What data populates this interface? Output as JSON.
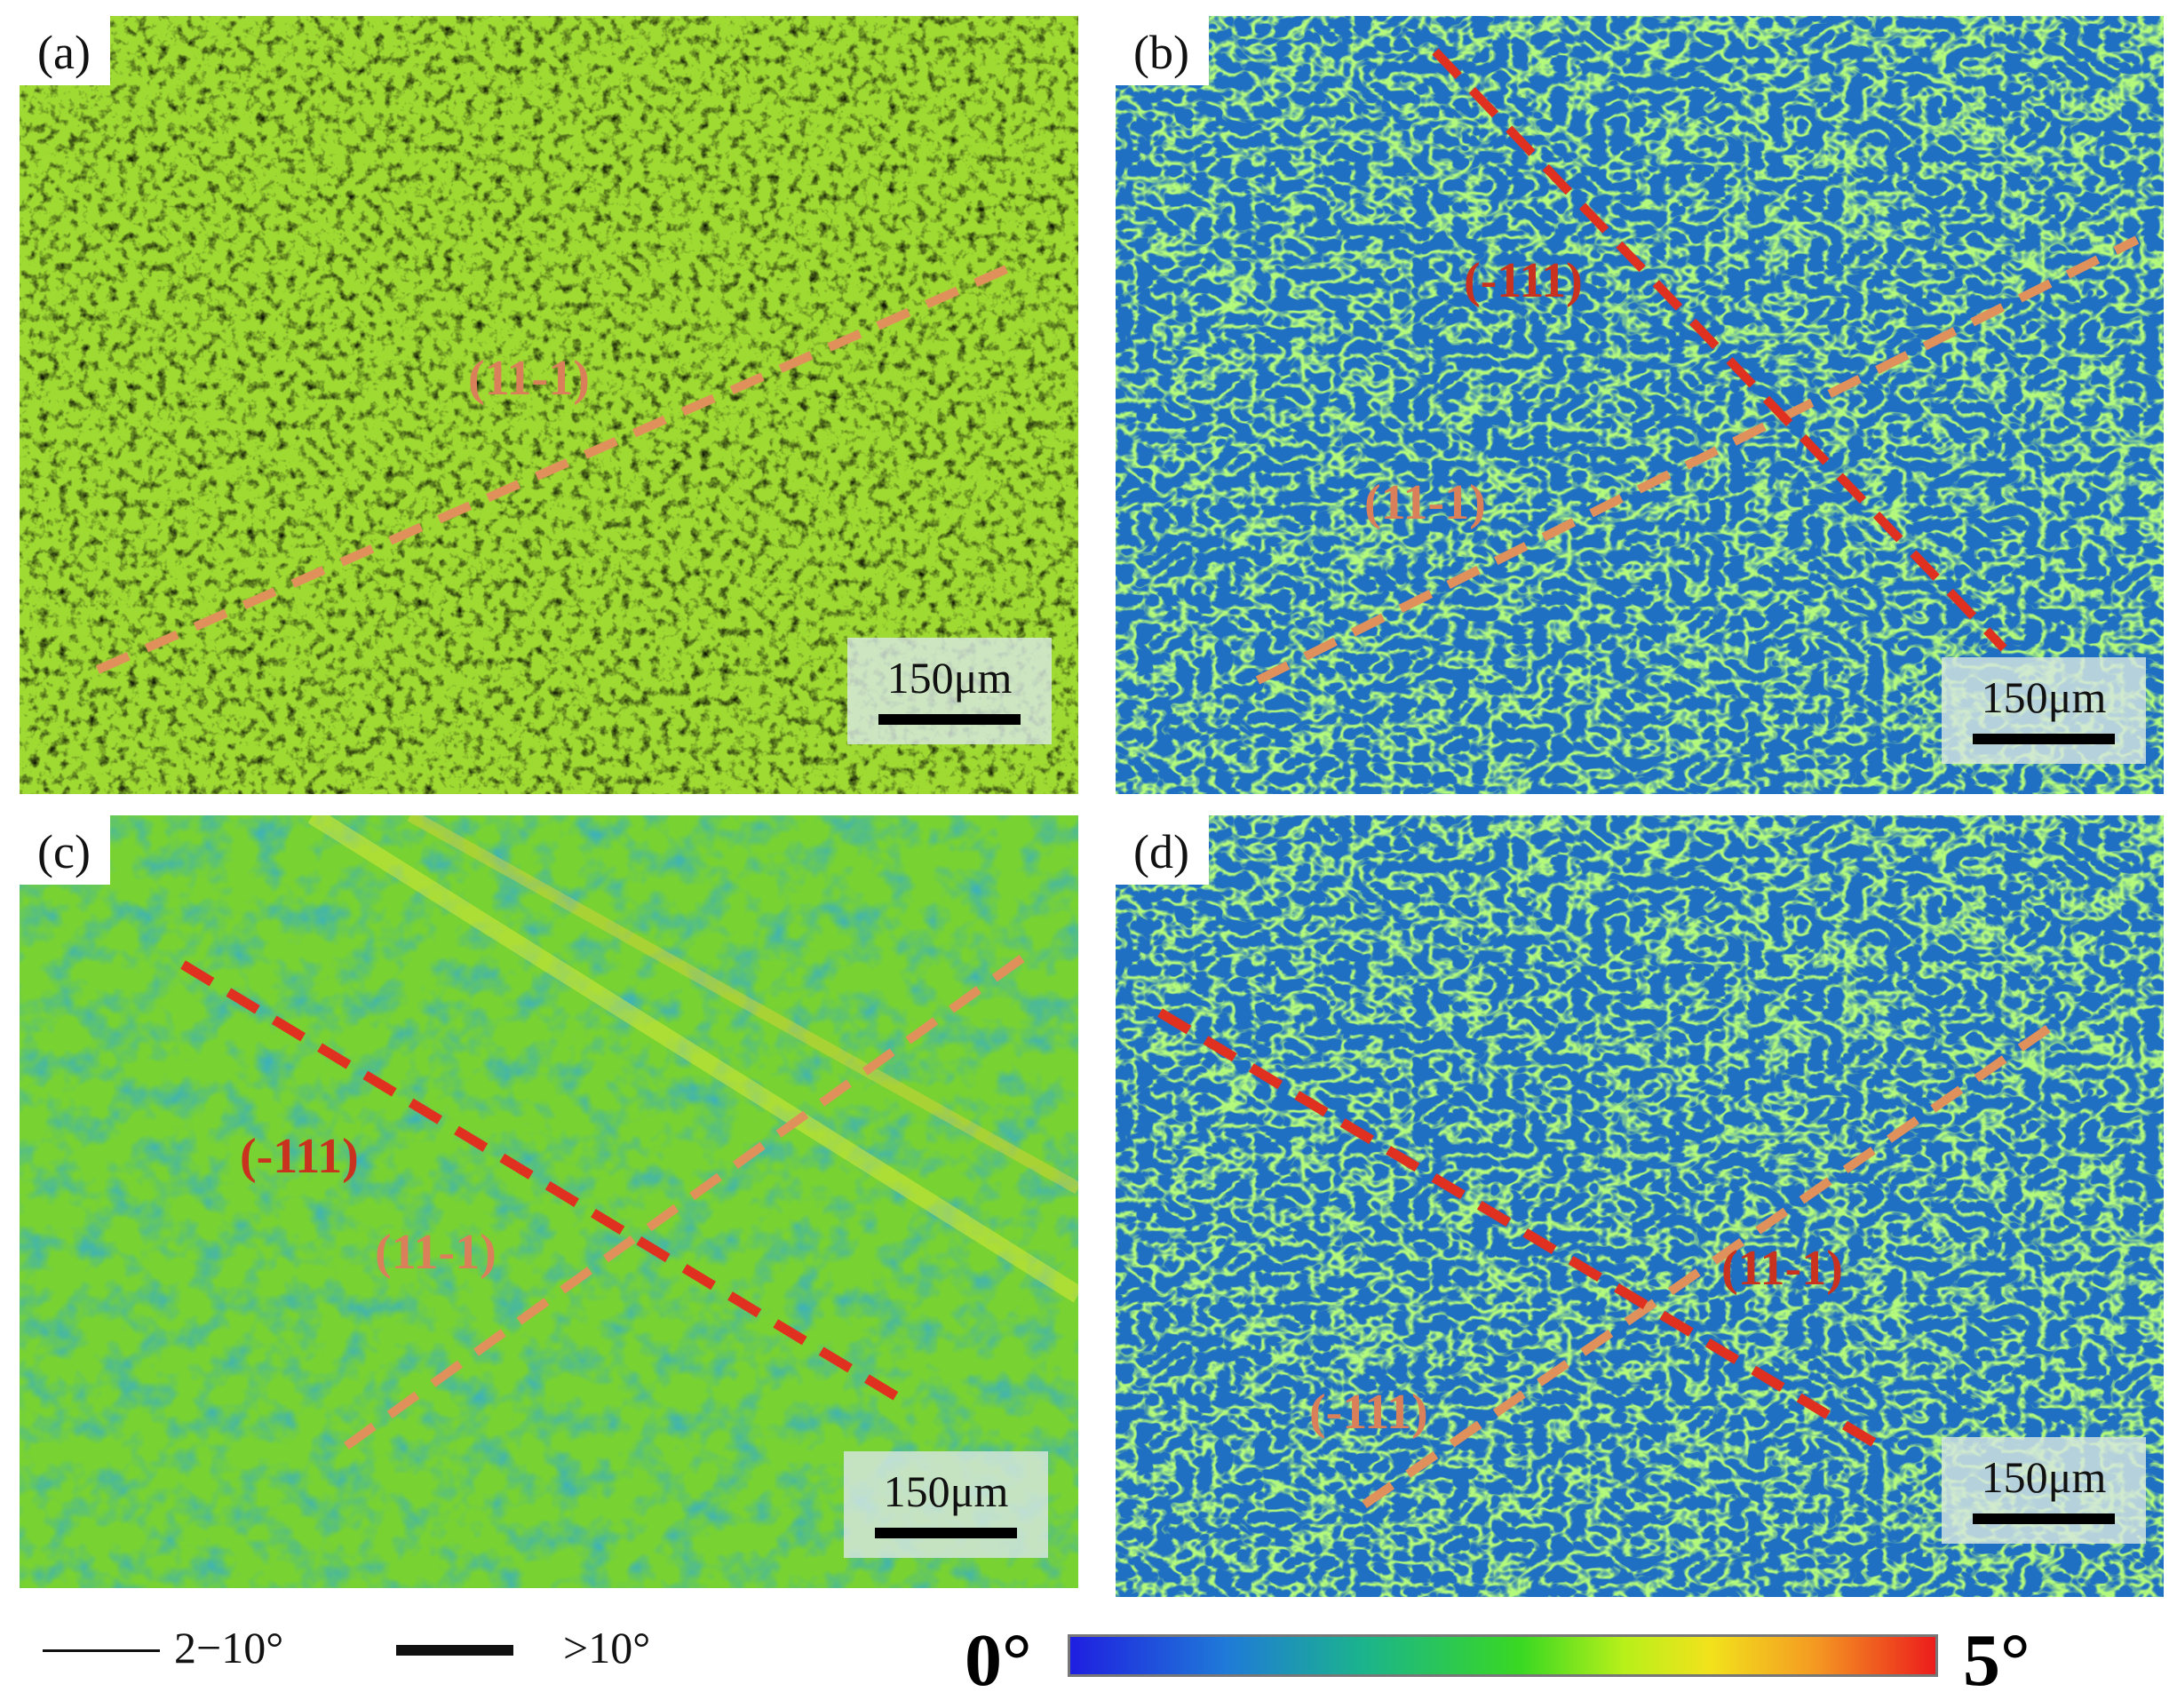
{
  "panels": [
    {
      "label": "(a)",
      "scale_text": "150μm",
      "plane_labels": [
        {
          "text": "(11-1)",
          "color": "#d9805a"
        }
      ]
    },
    {
      "label": "(b)",
      "scale_text": "150μm",
      "plane_labels": [
        {
          "text": "(-111)",
          "color": "#c8321e"
        },
        {
          "text": "(11-1)",
          "color": "#d9805a"
        }
      ]
    },
    {
      "label": "(c)",
      "scale_text": "150μm",
      "plane_labels": [
        {
          "text": "(-111)",
          "color": "#c8321e"
        },
        {
          "text": "(11-1)",
          "color": "#d9805a"
        }
      ]
    },
    {
      "label": "(d)",
      "scale_text": "150μm",
      "plane_labels": [
        {
          "text": "(11-1)",
          "color": "#c8321e"
        },
        {
          "text": "(-111)",
          "color": "#d9805a"
        }
      ]
    }
  ],
  "legend": {
    "thin_label": "2−10°",
    "thick_label": ">10°"
  },
  "colorbar": {
    "min_label": "0°",
    "max_label": "5°",
    "colors": [
      "#1f1fe0",
      "#1bb48c",
      "#39d822",
      "#f2e21c",
      "#ec1c1c"
    ]
  },
  "colors": {
    "dashed_red": "#e03020",
    "dashed_orange": "#e0905a"
  }
}
